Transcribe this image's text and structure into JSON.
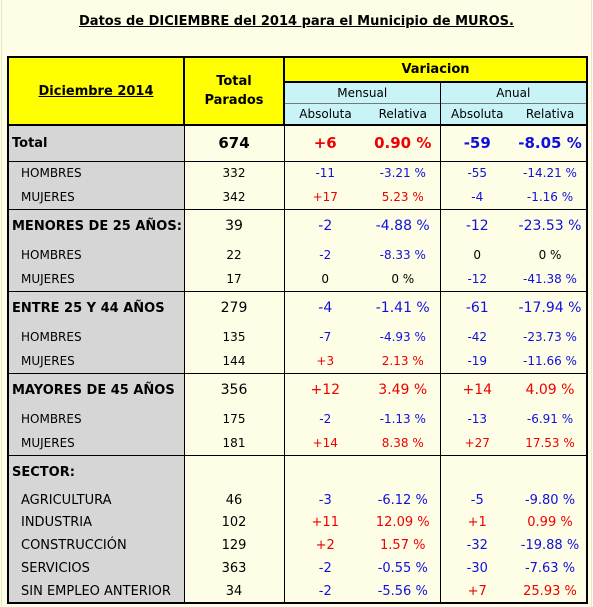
{
  "title": "Datos de DICIEMBRE del 2014 para el Municipio de MUROS.",
  "header": {
    "period": "Diciembre 2014",
    "total_line1": "Total",
    "total_line2": "Parados",
    "variacion": "Variacion",
    "mensual": "Mensual",
    "anual": "Anual",
    "absoluta": "Absoluta",
    "relativa": "Relativa"
  },
  "rows": [
    {
      "label": "Total",
      "total": "674",
      "m_abs": "+6",
      "m_rel": "0.90 %",
      "a_abs": "-59",
      "a_rel": "-8.05 %"
    },
    {
      "label": "HOMBRES",
      "total": "332",
      "m_abs": "-11",
      "m_rel": "-3.21 %",
      "a_abs": "-55",
      "a_rel": "-14.21 %"
    },
    {
      "label": "MUJERES",
      "total": "342",
      "m_abs": "+17",
      "m_rel": "5.23 %",
      "a_abs": "-4",
      "a_rel": "-1.16 %"
    },
    {
      "label": "MENORES DE 25 AÑOS:",
      "total": "39",
      "m_abs": "-2",
      "m_rel": "-4.88 %",
      "a_abs": "-12",
      "a_rel": "-23.53 %"
    },
    {
      "label": "HOMBRES",
      "total": "22",
      "m_abs": "-2",
      "m_rel": "-8.33 %",
      "a_abs": "0",
      "a_rel": "0 %"
    },
    {
      "label": "MUJERES",
      "total": "17",
      "m_abs": "0",
      "m_rel": "0 %",
      "a_abs": "-12",
      "a_rel": "-41.38 %"
    },
    {
      "label": "ENTRE 25 Y 44 AÑOS",
      "total": "279",
      "m_abs": "-4",
      "m_rel": "-1.41 %",
      "a_abs": "-61",
      "a_rel": "-17.94 %"
    },
    {
      "label": "HOMBRES",
      "total": "135",
      "m_abs": "-7",
      "m_rel": "-4.93 %",
      "a_abs": "-42",
      "a_rel": "-23.73 %"
    },
    {
      "label": "MUJERES",
      "total": "144",
      "m_abs": "+3",
      "m_rel": "2.13 %",
      "a_abs": "-19",
      "a_rel": "-11.66 %"
    },
    {
      "label": "MAYORES DE 45 AÑOS",
      "total": "356",
      "m_abs": "+12",
      "m_rel": "3.49 %",
      "a_abs": "+14",
      "a_rel": "4.09 %"
    },
    {
      "label": "HOMBRES",
      "total": "175",
      "m_abs": "-2",
      "m_rel": "-1.13 %",
      "a_abs": "-13",
      "a_rel": "-6.91 %"
    },
    {
      "label": "MUJERES",
      "total": "181",
      "m_abs": "+14",
      "m_rel": "8.38 %",
      "a_abs": "+27",
      "a_rel": "17.53 %"
    },
    {
      "label": "SECTOR:",
      "total": "",
      "m_abs": "",
      "m_rel": "",
      "a_abs": "",
      "a_rel": ""
    },
    {
      "label": "AGRICULTURA",
      "total": "46",
      "m_abs": "-3",
      "m_rel": "-6.12 %",
      "a_abs": "-5",
      "a_rel": "-9.80 %"
    },
    {
      "label": "INDUSTRIA",
      "total": "102",
      "m_abs": "+11",
      "m_rel": "12.09 %",
      "a_abs": "+1",
      "a_rel": "0.99 %"
    },
    {
      "label": "CONSTRUCCIÓN",
      "total": "129",
      "m_abs": "+2",
      "m_rel": "1.57 %",
      "a_abs": "-32",
      "a_rel": "-19.88 %"
    },
    {
      "label": "SERVICIOS",
      "total": "363",
      "m_abs": "-2",
      "m_rel": "-0.55 %",
      "a_abs": "-30",
      "a_rel": "-7.63 %"
    },
    {
      "label": "SIN EMPLEO ANTERIOR",
      "total": "34",
      "m_abs": "-2",
      "m_rel": "-5.56 %",
      "a_abs": "+7",
      "a_rel": "25.93 %"
    }
  ],
  "colors": {
    "header_yellow": "#ffff00",
    "subheader_cyan": "#c8f4f8",
    "label_gray": "#d6d6d6",
    "positive": "#ee0000",
    "negative": "#1010dd",
    "background": "#fefee6"
  }
}
